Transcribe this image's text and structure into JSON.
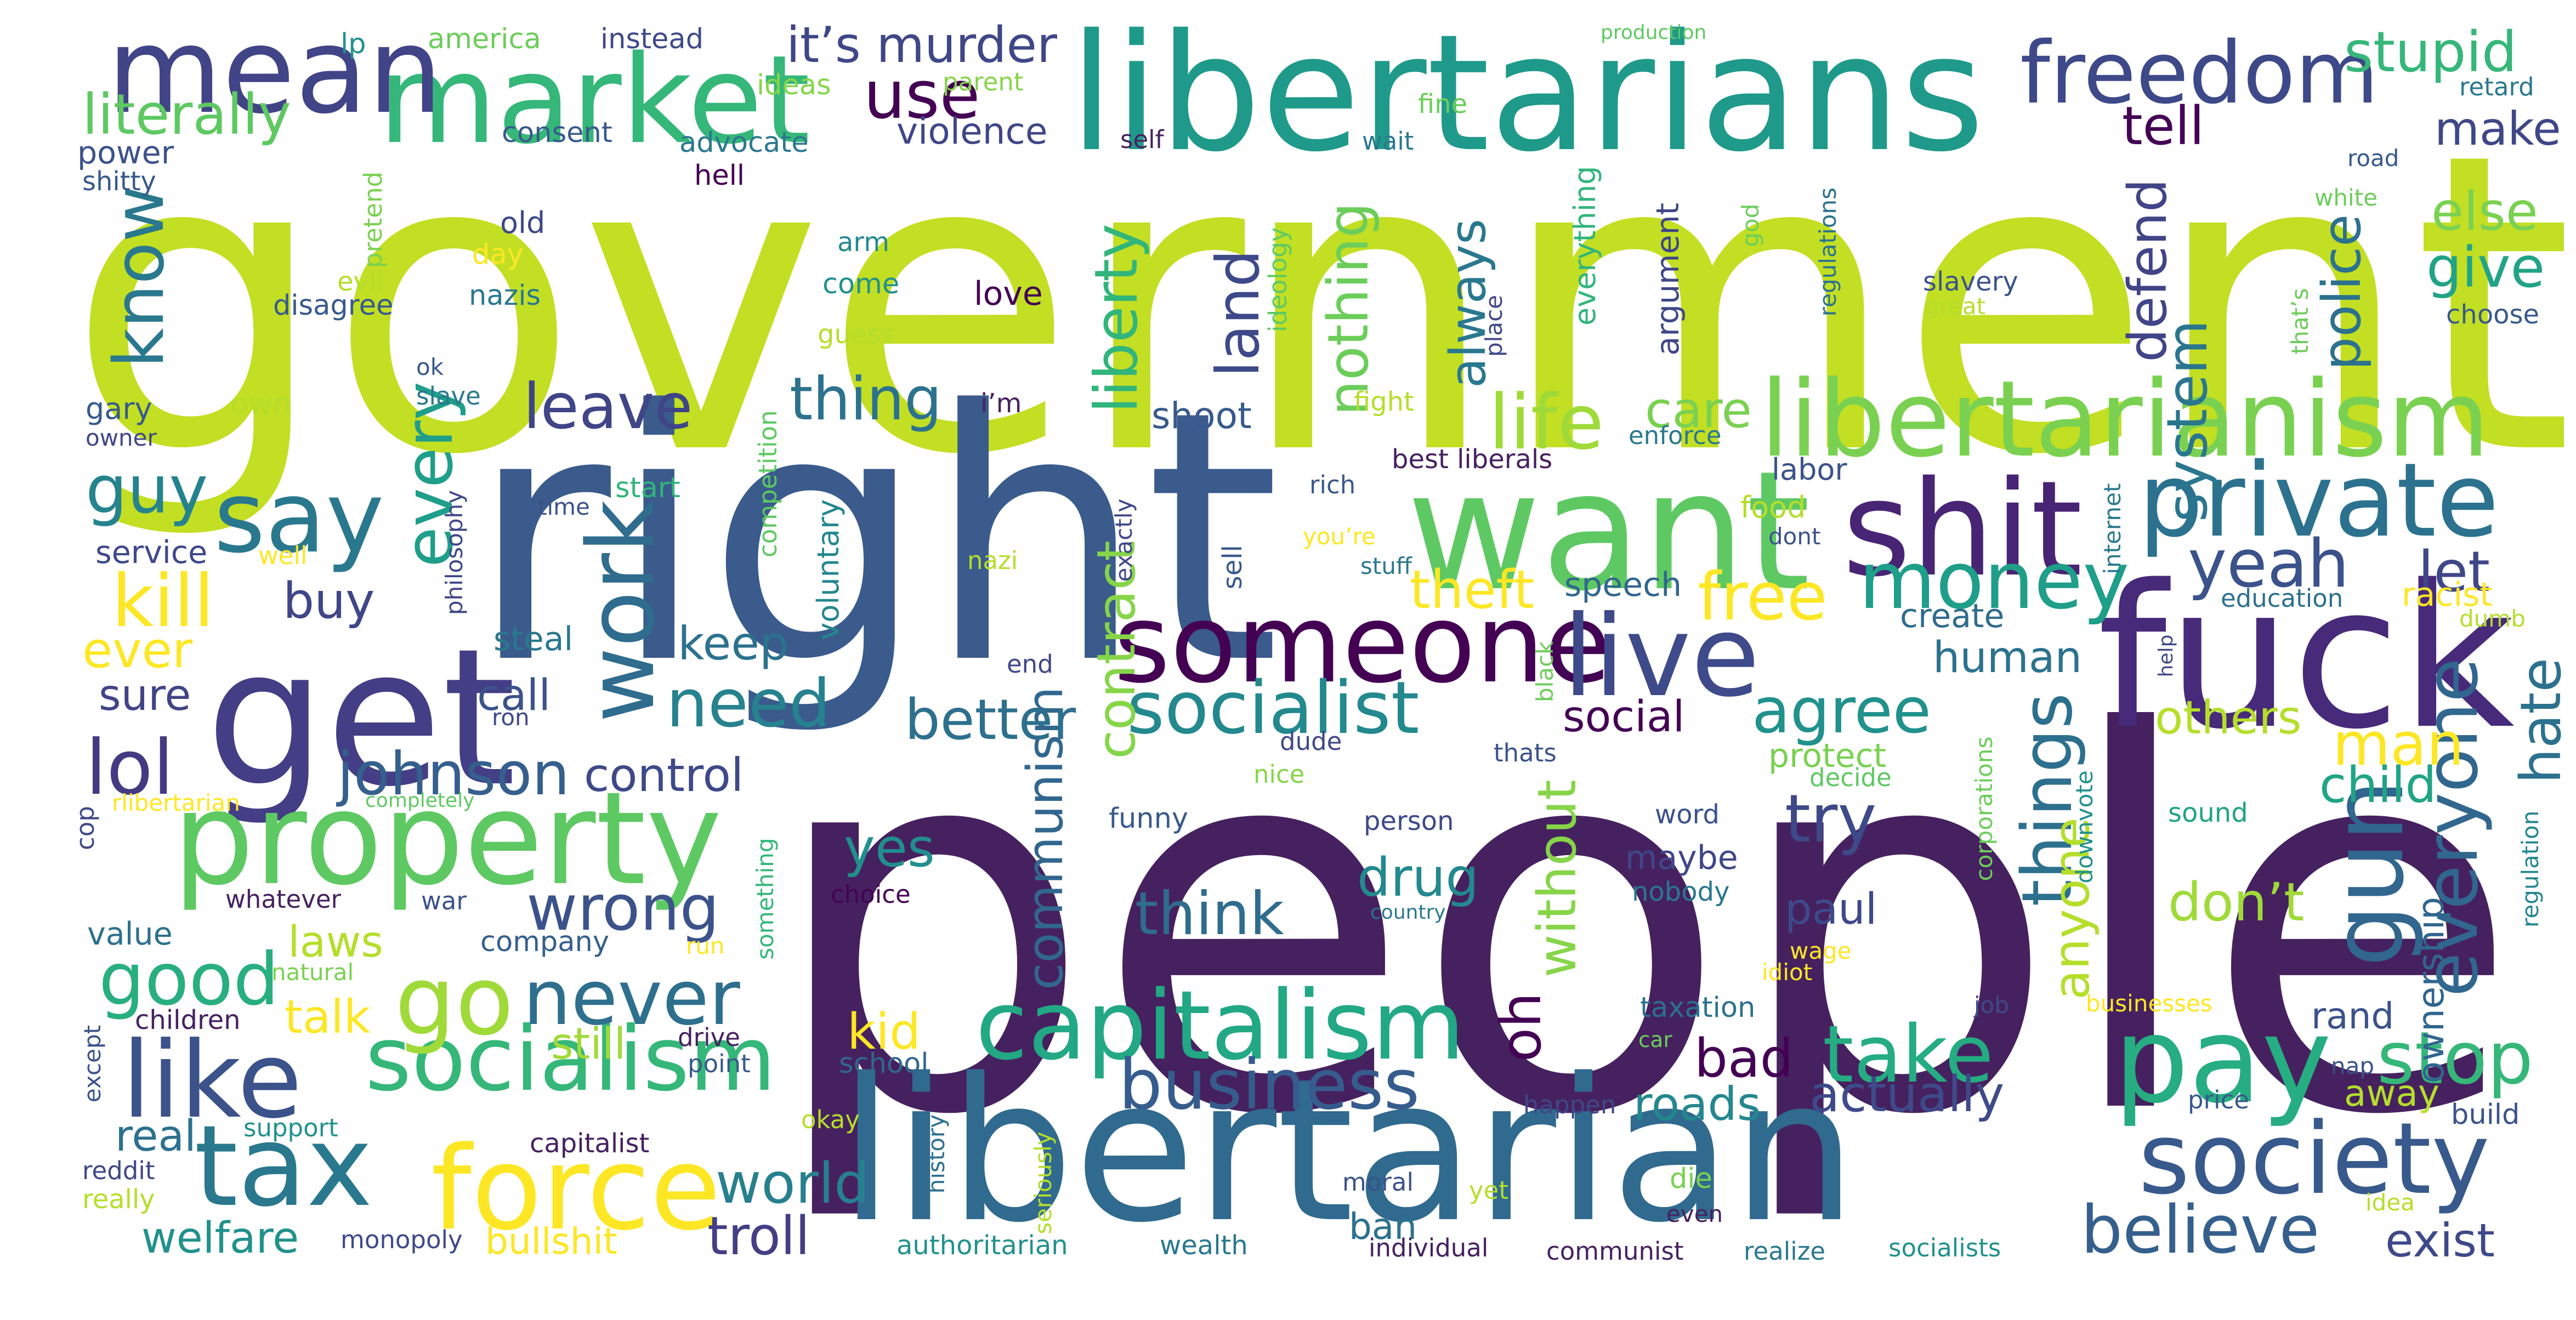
{
  "words": [
    "government",
    "people",
    "right",
    "libertarian",
    "libertarians",
    "want",
    "fuck",
    "get",
    "market",
    "mean",
    "property",
    "shit",
    "someone",
    "libertarianism",
    "freedom",
    "private",
    "tax",
    "force",
    "pay",
    "capitalism",
    "socialism",
    "society",
    "like",
    "live",
    "say",
    "go",
    "work",
    "gun",
    "socialist",
    "money",
    "never",
    "take",
    "stop",
    "lol",
    "johnson",
    "business",
    "life",
    "leave",
    "kill",
    "good",
    "need",
    "wrong",
    "believe",
    "everyone",
    "things",
    "yeah",
    "agree",
    "free",
    "try",
    "use",
    "it’s murder",
    "stupid",
    "literally",
    "know",
    "guy",
    "every",
    "thing",
    "liberty",
    "land",
    "nothing",
    "always",
    "defend",
    "police",
    "system",
    "else",
    "give",
    "make",
    "tell",
    "let",
    "hate",
    "others",
    "man",
    "child",
    "don’t",
    "theft",
    "care",
    "contract",
    "communism",
    "anyone",
    "oh",
    "without",
    "think",
    "better",
    "drug",
    "yes",
    "world",
    "troll",
    "kid",
    "bad",
    "actually",
    "roads",
    "social",
    "control",
    "keep",
    "buy",
    "ever",
    "sure",
    "call",
    "steal",
    "still",
    "talk",
    "laws",
    "real",
    "welfare",
    "bullshit",
    "ban",
    "exist",
    "paul",
    "human",
    "speech",
    "create",
    "protect",
    "maybe",
    "ownership",
    "rand",
    "away",
    "racist",
    "shoot",
    "violence",
    "instead",
    "america",
    "lp",
    "ideas",
    "advocate",
    "consent",
    "hell",
    "power",
    "shitty",
    "pretend",
    "evil",
    "nazis",
    "disagree",
    "old",
    "day",
    "arm",
    "come",
    "guess",
    "love",
    "ideology",
    "fine",
    "wait",
    "everything",
    "argument",
    "regulations",
    "god",
    "slavery",
    "great",
    "choose",
    "white",
    "road",
    "retard",
    "production",
    "parent",
    "self",
    "gary",
    "own",
    "ok",
    "slave",
    "owner",
    "i’m",
    "fight",
    "best liberals",
    "place",
    "that’s",
    "enforce",
    "labor",
    "food",
    "dont",
    "rich",
    "stuff",
    "you’re",
    "service",
    "well",
    "philosophy",
    "competition",
    "voluntary",
    "start",
    "time",
    "nazi",
    "exactly",
    "sell",
    "internet",
    "education",
    "dumb",
    "help",
    "end",
    "ron",
    "black",
    "dude",
    "nice",
    "thats",
    "decide",
    "rlibertarian",
    "completely",
    "cop",
    "corporations",
    "downvote",
    "regulation",
    "funny",
    "person",
    "word",
    "sound",
    "whatever",
    "war",
    "choice",
    "country",
    "nobody",
    "wage",
    "value",
    "natural",
    "company",
    "run",
    "something",
    "idiot",
    "children",
    "except",
    "drive",
    "point",
    "school",
    "taxation",
    "car",
    "job",
    "businesses",
    "nap",
    "price",
    "build",
    "support",
    "happen",
    "okay",
    "capitalist",
    "reddit",
    "really",
    "seriously",
    "history",
    "moral",
    "yet",
    "die",
    "even",
    "idea",
    "monopoly",
    "authoritarian",
    "wealth",
    "individual",
    "communist",
    "realize",
    "socialists"
  ],
  "colors": {
    "background": "#ffffff",
    "palette": "viridis",
    "dark_purple": "#45175c",
    "blue": "#3b5a8c",
    "teal": "#21908c",
    "green": "#5ec962",
    "yellow_green": "#bddf26",
    "yellow": "#fde725"
  }
}
